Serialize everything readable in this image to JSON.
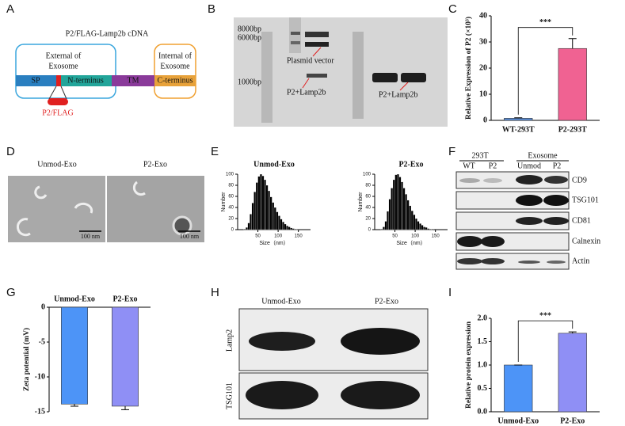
{
  "panel_labels": [
    "A",
    "B",
    "C",
    "D",
    "E",
    "F",
    "G",
    "H",
    "I"
  ],
  "panel_a": {
    "title": "P2/FLAG-Lamp2b cDNA",
    "external": [
      "External of",
      "Exosome"
    ],
    "internal": [
      "Internal of",
      "Exosome"
    ],
    "segments": [
      "SP",
      "N-terminus",
      "TM",
      "C-terminus"
    ],
    "tag": "P2/FLAG"
  },
  "panel_b": {
    "markers": [
      "8000bp",
      "6000bp",
      "1000bp"
    ],
    "labels": [
      "Plasmid vector",
      "P2+Lamp2b",
      "P2+Lamp2b"
    ]
  },
  "panel_d": {
    "titles": [
      "Unmod-Exo",
      "P2-Exo"
    ],
    "scale": [
      "100 nm",
      "100 nm"
    ]
  },
  "panel_f": {
    "groups": [
      "293T",
      "Exosome"
    ],
    "lanes": [
      "WT",
      "P2",
      "Unmod",
      "P2"
    ],
    "proteins": [
      "CD9",
      "TSG101",
      "CD81",
      "Calnexin",
      "Actin"
    ]
  },
  "panel_h": {
    "lanes": [
      "Unmod-Exo",
      "P2-Exo"
    ],
    "proteins": [
      "Lamp2",
      "TSG101"
    ]
  },
  "chart_data": [
    {
      "type": "bar",
      "ylabel": "Relative Expression of P2 (×10³)",
      "categories": [
        "WT-293T",
        "P2-293T"
      ],
      "values": [
        0.8,
        27.5
      ],
      "errors": [
        0.2,
        3.8
      ],
      "colors": [
        "#5b8fd9",
        "#f06292"
      ],
      "ylim": [
        0,
        40
      ],
      "yticks": [
        0,
        10,
        20,
        30,
        40
      ],
      "annotation": "***"
    },
    {
      "type": "histogram",
      "title": "Unmod-Exo",
      "xlabel": "Size（nm）",
      "ylabel": "Number",
      "bins": [
        0,
        5,
        10,
        15,
        20,
        25,
        30,
        35,
        40,
        45,
        50,
        55,
        60,
        65,
        70,
        75,
        80,
        85,
        90,
        95,
        100,
        105,
        110,
        115,
        120,
        125,
        130,
        135,
        140,
        145,
        150,
        155,
        160,
        165,
        170,
        175,
        180
      ],
      "values": [
        0,
        0,
        0,
        1,
        4,
        12,
        28,
        48,
        68,
        85,
        96,
        100,
        97,
        90,
        80,
        70,
        59,
        49,
        40,
        32,
        25,
        19,
        14,
        10,
        7,
        5,
        3,
        2,
        1,
        1,
        0,
        0,
        0,
        0,
        0,
        0
      ],
      "color": "#000000",
      "xlim": [
        0,
        180
      ],
      "xticks": [
        50,
        100,
        150
      ],
      "ylim": [
        0,
        100
      ],
      "yticks": [
        0,
        20,
        40,
        60,
        80,
        100
      ]
    },
    {
      "type": "histogram",
      "title": "P2-Exo",
      "xlabel": "Size（nm）",
      "ylabel": "Number",
      "bins": [
        0,
        5,
        10,
        15,
        20,
        25,
        30,
        35,
        40,
        45,
        50,
        55,
        60,
        65,
        70,
        75,
        80,
        85,
        90,
        95,
        100,
        105,
        110,
        115,
        120,
        125,
        130,
        135,
        140,
        145,
        150,
        155,
        160,
        165,
        170,
        175,
        180
      ],
      "values": [
        0,
        0,
        0,
        1,
        5,
        15,
        33,
        55,
        75,
        90,
        99,
        100,
        95,
        86,
        75,
        64,
        53,
        43,
        34,
        27,
        20,
        15,
        11,
        8,
        5,
        4,
        2,
        1,
        1,
        0,
        0,
        0,
        0,
        0,
        0,
        0
      ],
      "color": "#000000",
      "xlim": [
        0,
        180
      ],
      "xticks": [
        50,
        100,
        150
      ],
      "ylim": [
        0,
        100
      ],
      "yticks": [
        0,
        20,
        40,
        60,
        80,
        100
      ]
    },
    {
      "type": "bar",
      "ylabel": "Zeta potential (mV)",
      "categories": [
        "Unmod-Exo",
        "P2-Exo"
      ],
      "values": [
        -13.9,
        -14.2
      ],
      "errors": [
        0.3,
        0.5
      ],
      "colors": [
        "#4d94f7",
        "#8f8ff5"
      ],
      "ylim": [
        -15,
        0
      ],
      "yticks": [
        0,
        -5,
        -10,
        -15
      ]
    },
    {
      "type": "bar",
      "ylabel": "Relative protein expression",
      "categories": [
        "Unmod-Exo",
        "P2-Exo"
      ],
      "values": [
        1.0,
        1.68
      ],
      "errors": [
        0,
        0.03
      ],
      "colors": [
        "#4d94f7",
        "#8f8ff5"
      ],
      "ylim": [
        0,
        2
      ],
      "yticks": [
        {
          "value": 0,
          "label": "0.0"
        },
        {
          "value": 0.5,
          "label": "0.5"
        },
        {
          "value": 1,
          "label": "1.0"
        },
        {
          "value": 1.5,
          "label": "1.5"
        },
        {
          "value": 2,
          "label": "2.0"
        }
      ],
      "annotation": "***"
    }
  ]
}
